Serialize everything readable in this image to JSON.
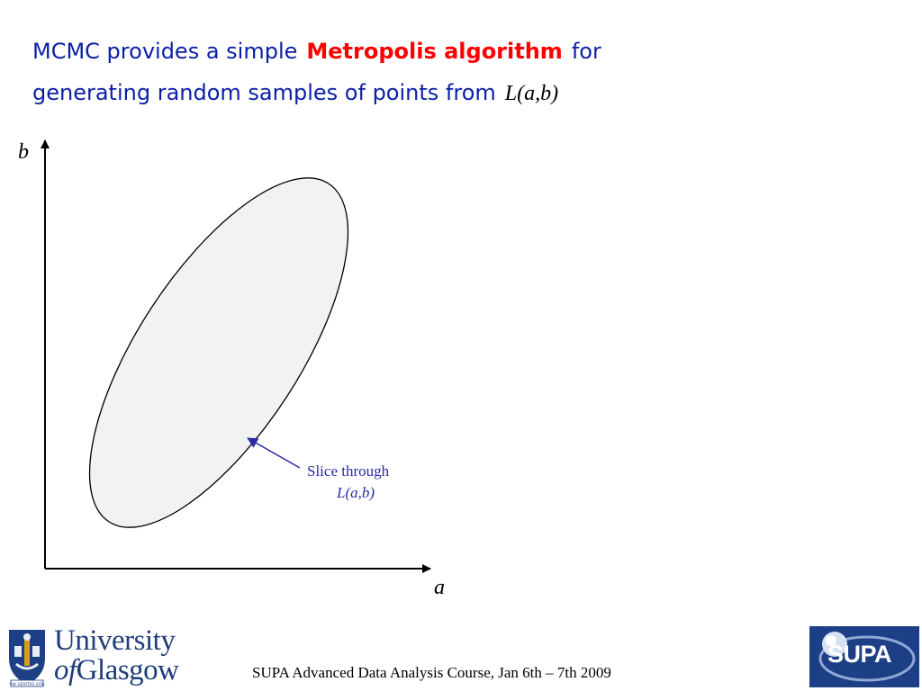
{
  "heading": {
    "line1_pre": "MCMC provides a simple",
    "highlight": "Metropolis algorithm",
    "line1_post": "for",
    "line2_pre": "generating random samples of points from",
    "math_expr": "L(a,b)"
  },
  "diagram": {
    "x_axis_label": "a",
    "y_axis_label": "b",
    "annotation_line1": "Slice through",
    "annotation_line2": "L(a,b)",
    "colors": {
      "heading_text": "#0b1fa6",
      "highlight": "#ff0000",
      "annotation": "#2a2aa8",
      "ellipse_fill": "#f2f2f2"
    }
  },
  "footer": {
    "course": "SUPA Advanced Data Analysis Course, Jan 6th – 7th 2009"
  },
  "logos": {
    "university_line1": "University",
    "university_of": "of",
    "university_line2": "Glasgow",
    "crest_motto": "VIA VERITAS VITA",
    "supa": "SUPA"
  }
}
